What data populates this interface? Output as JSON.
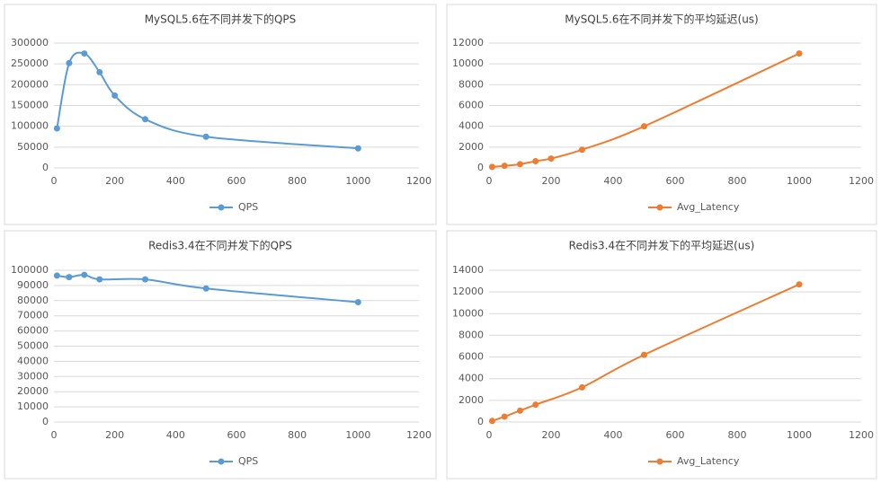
{
  "chart_data": [
    {
      "type": "line",
      "title": "MySQL5.6在不同并发下的QPS",
      "smooth": true,
      "grid": true,
      "x": [
        10,
        50,
        100,
        150,
        200,
        300,
        500,
        1000
      ],
      "series": [
        {
          "name": "QPS",
          "color": "#5b9bd5",
          "values": [
            95000,
            252000,
            275000,
            230000,
            174000,
            117000,
            75000,
            47000
          ]
        }
      ],
      "xlim": [
        0,
        1200
      ],
      "xticks": [
        0,
        200,
        400,
        600,
        800,
        1000,
        1200
      ],
      "ylim": [
        0,
        300000
      ],
      "yticks": [
        0,
        50000,
        100000,
        150000,
        200000,
        250000,
        300000
      ]
    },
    {
      "type": "line",
      "title": "MySQL5.6在不同并发下的平均延迟(us)",
      "smooth": true,
      "grid": true,
      "x": [
        10,
        50,
        100,
        150,
        200,
        300,
        500,
        1000
      ],
      "series": [
        {
          "name": "Avg_Latency",
          "color": "#ed7d31",
          "values": [
            100,
            200,
            360,
            650,
            900,
            1750,
            4000,
            11000
          ]
        }
      ],
      "xlim": [
        0,
        1200
      ],
      "xticks": [
        0,
        200,
        400,
        600,
        800,
        1000,
        1200
      ],
      "ylim": [
        0,
        12000
      ],
      "yticks": [
        0,
        2000,
        4000,
        6000,
        8000,
        10000,
        12000
      ]
    },
    {
      "type": "line",
      "title": "Redis3.4在不同并发下的QPS",
      "smooth": true,
      "grid": true,
      "x": [
        10,
        50,
        100,
        150,
        300,
        500,
        1000
      ],
      "series": [
        {
          "name": "QPS",
          "color": "#5b9bd5",
          "values": [
            96500,
            95500,
            97000,
            94000,
            94000,
            88000,
            79000
          ]
        }
      ],
      "xlim": [
        0,
        1200
      ],
      "xticks": [
        0,
        200,
        400,
        600,
        800,
        1000,
        1200
      ],
      "ylim": [
        0,
        100000
      ],
      "yticks": [
        0,
        10000,
        20000,
        30000,
        40000,
        50000,
        60000,
        70000,
        80000,
        90000,
        100000
      ]
    },
    {
      "type": "line",
      "title": "Redis3.4在不同并发下的平均延迟(us)",
      "smooth": true,
      "grid": true,
      "x": [
        10,
        50,
        100,
        150,
        300,
        500,
        1000
      ],
      "series": [
        {
          "name": "Avg_Latency",
          "color": "#ed7d31",
          "values": [
            100,
            500,
            1050,
            1600,
            3200,
            6200,
            12700
          ]
        }
      ],
      "xlim": [
        0,
        1200
      ],
      "xticks": [
        0,
        200,
        400,
        600,
        800,
        1000,
        1200
      ],
      "ylim": [
        0,
        14000
      ],
      "yticks": [
        0,
        2000,
        4000,
        6000,
        8000,
        10000,
        12000,
        14000
      ]
    }
  ]
}
